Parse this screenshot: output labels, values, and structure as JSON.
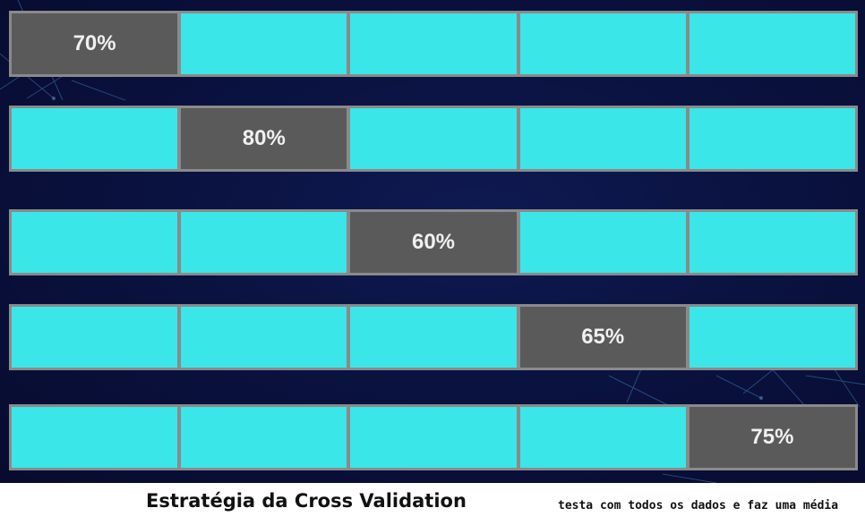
{
  "rows": [
    {
      "cells": [
        "70%",
        "",
        "",
        "",
        ""
      ],
      "test_index": 0
    },
    {
      "cells": [
        "",
        "80%",
        "",
        "",
        ""
      ],
      "test_index": 1
    },
    {
      "cells": [
        "",
        "",
        "60%",
        "",
        ""
      ],
      "test_index": 2
    },
    {
      "cells": [
        "",
        "",
        "",
        "65%",
        ""
      ],
      "test_index": 3
    },
    {
      "cells": [
        "",
        "",
        "",
        "",
        "75%"
      ],
      "test_index": 4
    }
  ],
  "caption": "Estratégia da Cross Validation",
  "note": "testa com todos os dados e faz uma média",
  "colors": {
    "train_fold": "#3ae6e8",
    "test_fold": "#5a5a5a",
    "background": "#0a1240"
  }
}
